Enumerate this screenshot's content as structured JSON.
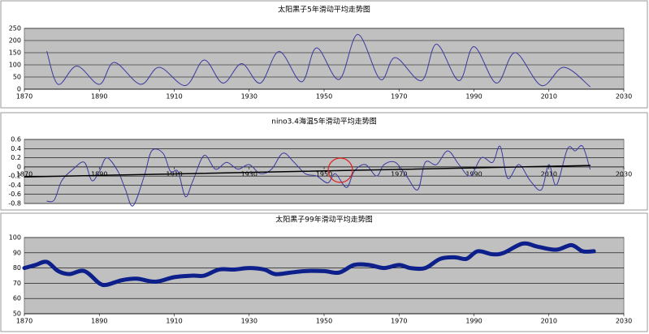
{
  "chart_data": [
    {
      "type": "line",
      "title": "太阳黑子5年滑动平均走势图",
      "xlim": [
        1870,
        2030
      ],
      "xticks": [
        1870,
        1890,
        1910,
        1930,
        1950,
        1970,
        1990,
        2010,
        2030
      ],
      "ylim": [
        0,
        250
      ],
      "yticks": [
        0,
        50,
        100,
        150,
        200,
        250
      ],
      "grid": true,
      "background": "#c0c0c0",
      "xaxis_position": "bottom",
      "series": [
        {
          "color": "#3a3aa0",
          "line_width": 1,
          "x": [
            1876,
            1879,
            1884,
            1890,
            1894,
            1901,
            1906,
            1913,
            1918,
            1923,
            1928,
            1933,
            1938,
            1944,
            1948,
            1954,
            1959,
            1965,
            1969,
            1976,
            1980,
            1986,
            1990,
            1996,
            2001,
            2008,
            2014,
            2021
          ],
          "values": [
            155,
            20,
            95,
            20,
            110,
            20,
            90,
            15,
            120,
            25,
            105,
            25,
            155,
            30,
            170,
            40,
            225,
            40,
            130,
            35,
            185,
            35,
            175,
            25,
            150,
            15,
            90,
            10
          ]
        }
      ]
    },
    {
      "type": "line",
      "title": "nino3.4海温5年滑动平均走势图",
      "xlim": [
        1870,
        2030
      ],
      "xticks": [
        1870,
        1890,
        1910,
        1930,
        1950,
        1970,
        1990,
        2010,
        2030
      ],
      "ylim": [
        -0.8,
        0.6
      ],
      "yticks": [
        -0.8,
        -0.6,
        -0.4,
        -0.2,
        0,
        0.2,
        0.4,
        0.6
      ],
      "grid": true,
      "background": "#c0c0c0",
      "xaxis_position": "zero",
      "series": [
        {
          "color": "#3a3aa0",
          "line_width": 1,
          "x": [
            1876,
            1878,
            1880,
            1883,
            1886,
            1888,
            1890,
            1892,
            1895,
            1897,
            1899,
            1902,
            1904,
            1907,
            1909,
            1911,
            1913,
            1915,
            1918,
            1921,
            1924,
            1927,
            1930,
            1933,
            1936,
            1939,
            1942,
            1945,
            1948,
            1951,
            1953,
            1956,
            1958,
            1961,
            1964,
            1966,
            1969,
            1972,
            1975,
            1977,
            1980,
            1983,
            1986,
            1989,
            1992,
            1995,
            1997,
            1999,
            2002,
            2005,
            2008,
            2010,
            2012,
            2015,
            2017,
            2019,
            2021
          ],
          "values": [
            -0.75,
            -0.72,
            -0.3,
            -0.05,
            0.1,
            -0.3,
            -0.1,
            0.2,
            -0.1,
            -0.5,
            -0.85,
            -0.2,
            0.35,
            0.3,
            -0.1,
            -0.1,
            -0.65,
            -0.3,
            0.25,
            -0.05,
            0.1,
            -0.05,
            0.05,
            -0.15,
            -0.05,
            0.3,
            0.1,
            -0.15,
            -0.2,
            -0.35,
            -0.15,
            -0.45,
            -0.1,
            0.05,
            -0.2,
            0.05,
            0.1,
            -0.2,
            -0.5,
            0.1,
            0.05,
            0.35,
            0.05,
            -0.2,
            0.2,
            0.1,
            0.45,
            -0.25,
            0.05,
            -0.3,
            -0.5,
            0.05,
            -0.4,
            0.4,
            0.35,
            0.45,
            -0.05
          ]
        },
        {
          "color": "#000000",
          "line_width": 1.5,
          "x": [
            1870,
            2021
          ],
          "values": [
            -0.22,
            0.03
          ]
        }
      ]
    },
    {
      "type": "line",
      "title": "太阳黑子99年滑动平均走势图",
      "xlim": [
        1870,
        2030
      ],
      "xticks": [
        1870,
        1890,
        1910,
        1930,
        1950,
        1970,
        1990,
        2010,
        2030
      ],
      "ylim": [
        50,
        100
      ],
      "yticks": [
        50,
        60,
        70,
        80,
        90,
        100
      ],
      "grid": true,
      "background": "#c0c0c0",
      "xaxis_position": "bottom",
      "series": [
        {
          "color": "#0c1f8a",
          "line_width": 5,
          "x": [
            1870,
            1873,
            1876,
            1879,
            1882,
            1886,
            1890,
            1892,
            1896,
            1900,
            1905,
            1910,
            1915,
            1918,
            1922,
            1926,
            1930,
            1934,
            1937,
            1941,
            1945,
            1950,
            1954,
            1958,
            1962,
            1966,
            1970,
            1973,
            1977,
            1981,
            1985,
            1988,
            1991,
            1995,
            1998,
            2003,
            2007,
            2012,
            2016,
            2019,
            2022
          ],
          "values": [
            80,
            82,
            84,
            78,
            76,
            78,
            70,
            69,
            72,
            73,
            71,
            74,
            75,
            75,
            79,
            79,
            80,
            79,
            76,
            77,
            78,
            78,
            77,
            82,
            82,
            80,
            82,
            80,
            80,
            86,
            87,
            86,
            91,
            89,
            90,
            96,
            94,
            92,
            95,
            91,
            91
          ]
        }
      ]
    }
  ]
}
